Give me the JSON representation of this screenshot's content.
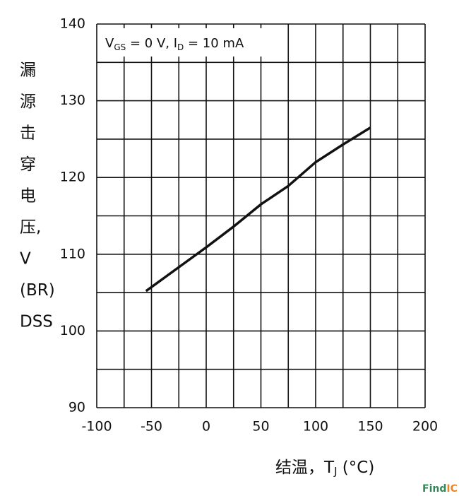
{
  "chart_data": {
    "type": "line",
    "y_label_lines": [
      "漏",
      "源",
      "击",
      "穿",
      "电",
      "压,",
      "V",
      "(BR)",
      "DSS"
    ],
    "x_label_parts": [
      "结温，T",
      "J",
      " (°C)"
    ],
    "annotation_parts": [
      "V",
      "GS",
      " = 0 V, I",
      "D",
      " = 10 mA"
    ],
    "watermark_parts": [
      "Find",
      "IC"
    ],
    "x": [
      -55,
      0,
      25,
      50,
      75,
      100,
      125,
      150
    ],
    "series": [
      {
        "name": "V(BR)DSS",
        "color": "#111111",
        "values": [
          105.2,
          110.9,
          113.6,
          116.5,
          118.9,
          122.0,
          124.3,
          126.5
        ]
      }
    ],
    "xlim": [
      -100,
      200
    ],
    "xticks": [
      -100,
      -50,
      0,
      50,
      100,
      150,
      200
    ],
    "minor_xticks": [
      -75,
      -25,
      25,
      75,
      125,
      175
    ],
    "ylim": [
      90,
      140
    ],
    "yticks": [
      90,
      100,
      110,
      120,
      130,
      140
    ],
    "minor_yticks": [
      95,
      105,
      115,
      125,
      135
    ],
    "grid": true
  }
}
